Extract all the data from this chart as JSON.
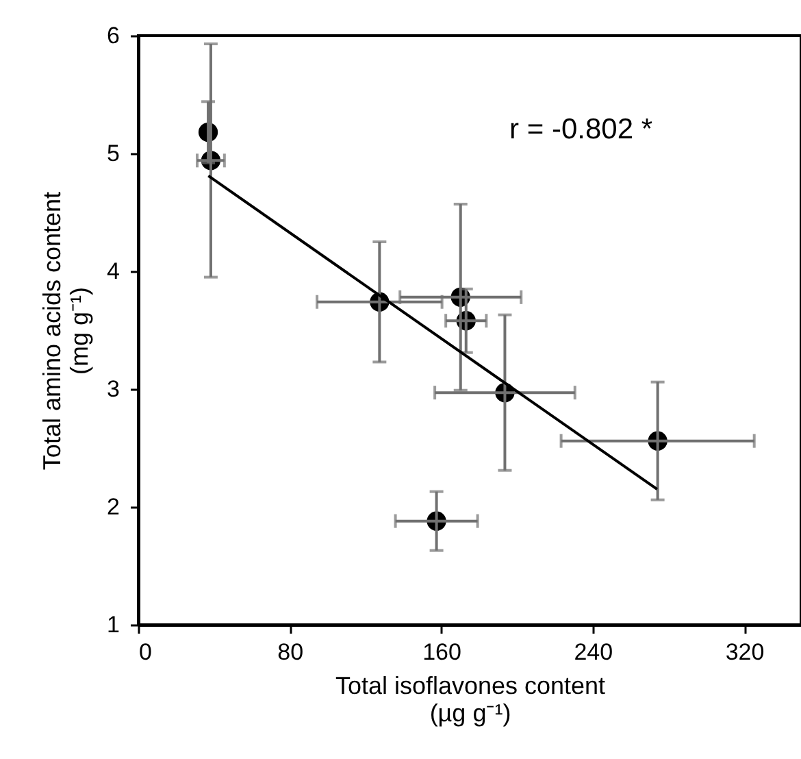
{
  "chart_data": {
    "type": "scatter",
    "xlabel": "Total isoflavones content\n(µg g⁻¹)",
    "ylabel": "Total amino acids content\n(mg g⁻¹)",
    "xlim": [
      0,
      350
    ],
    "ylim": [
      1,
      6
    ],
    "xticks": [
      0,
      80,
      160,
      240,
      320
    ],
    "yticks": [
      1,
      2,
      3,
      4,
      5,
      6
    ],
    "grid": false,
    "annotations": [
      "r = -0.802 *"
    ],
    "series": [
      {
        "color": "#000000",
        "marker": "circle",
        "x": [
          36.9,
          38.3,
          127.4,
          170.2,
          173.1,
          193.6,
          274.3,
          157.5
        ],
        "values": [
          5.18,
          4.94,
          3.74,
          3.78,
          3.58,
          2.97,
          2.56,
          1.88
        ],
        "errors": [
          0.26,
          0.99,
          0.51,
          0.79,
          0.27,
          0.66,
          0.5,
          0.25
        ],
        "xerrors": [
          null,
          7.2,
          33,
          32,
          10.7,
          37,
          51,
          21.7
        ]
      },
      {
        "type": "line",
        "color": "#000000",
        "line_style": "solid",
        "x": [
          37,
          274
        ],
        "values": [
          4.81,
          2.15
        ]
      }
    ]
  }
}
